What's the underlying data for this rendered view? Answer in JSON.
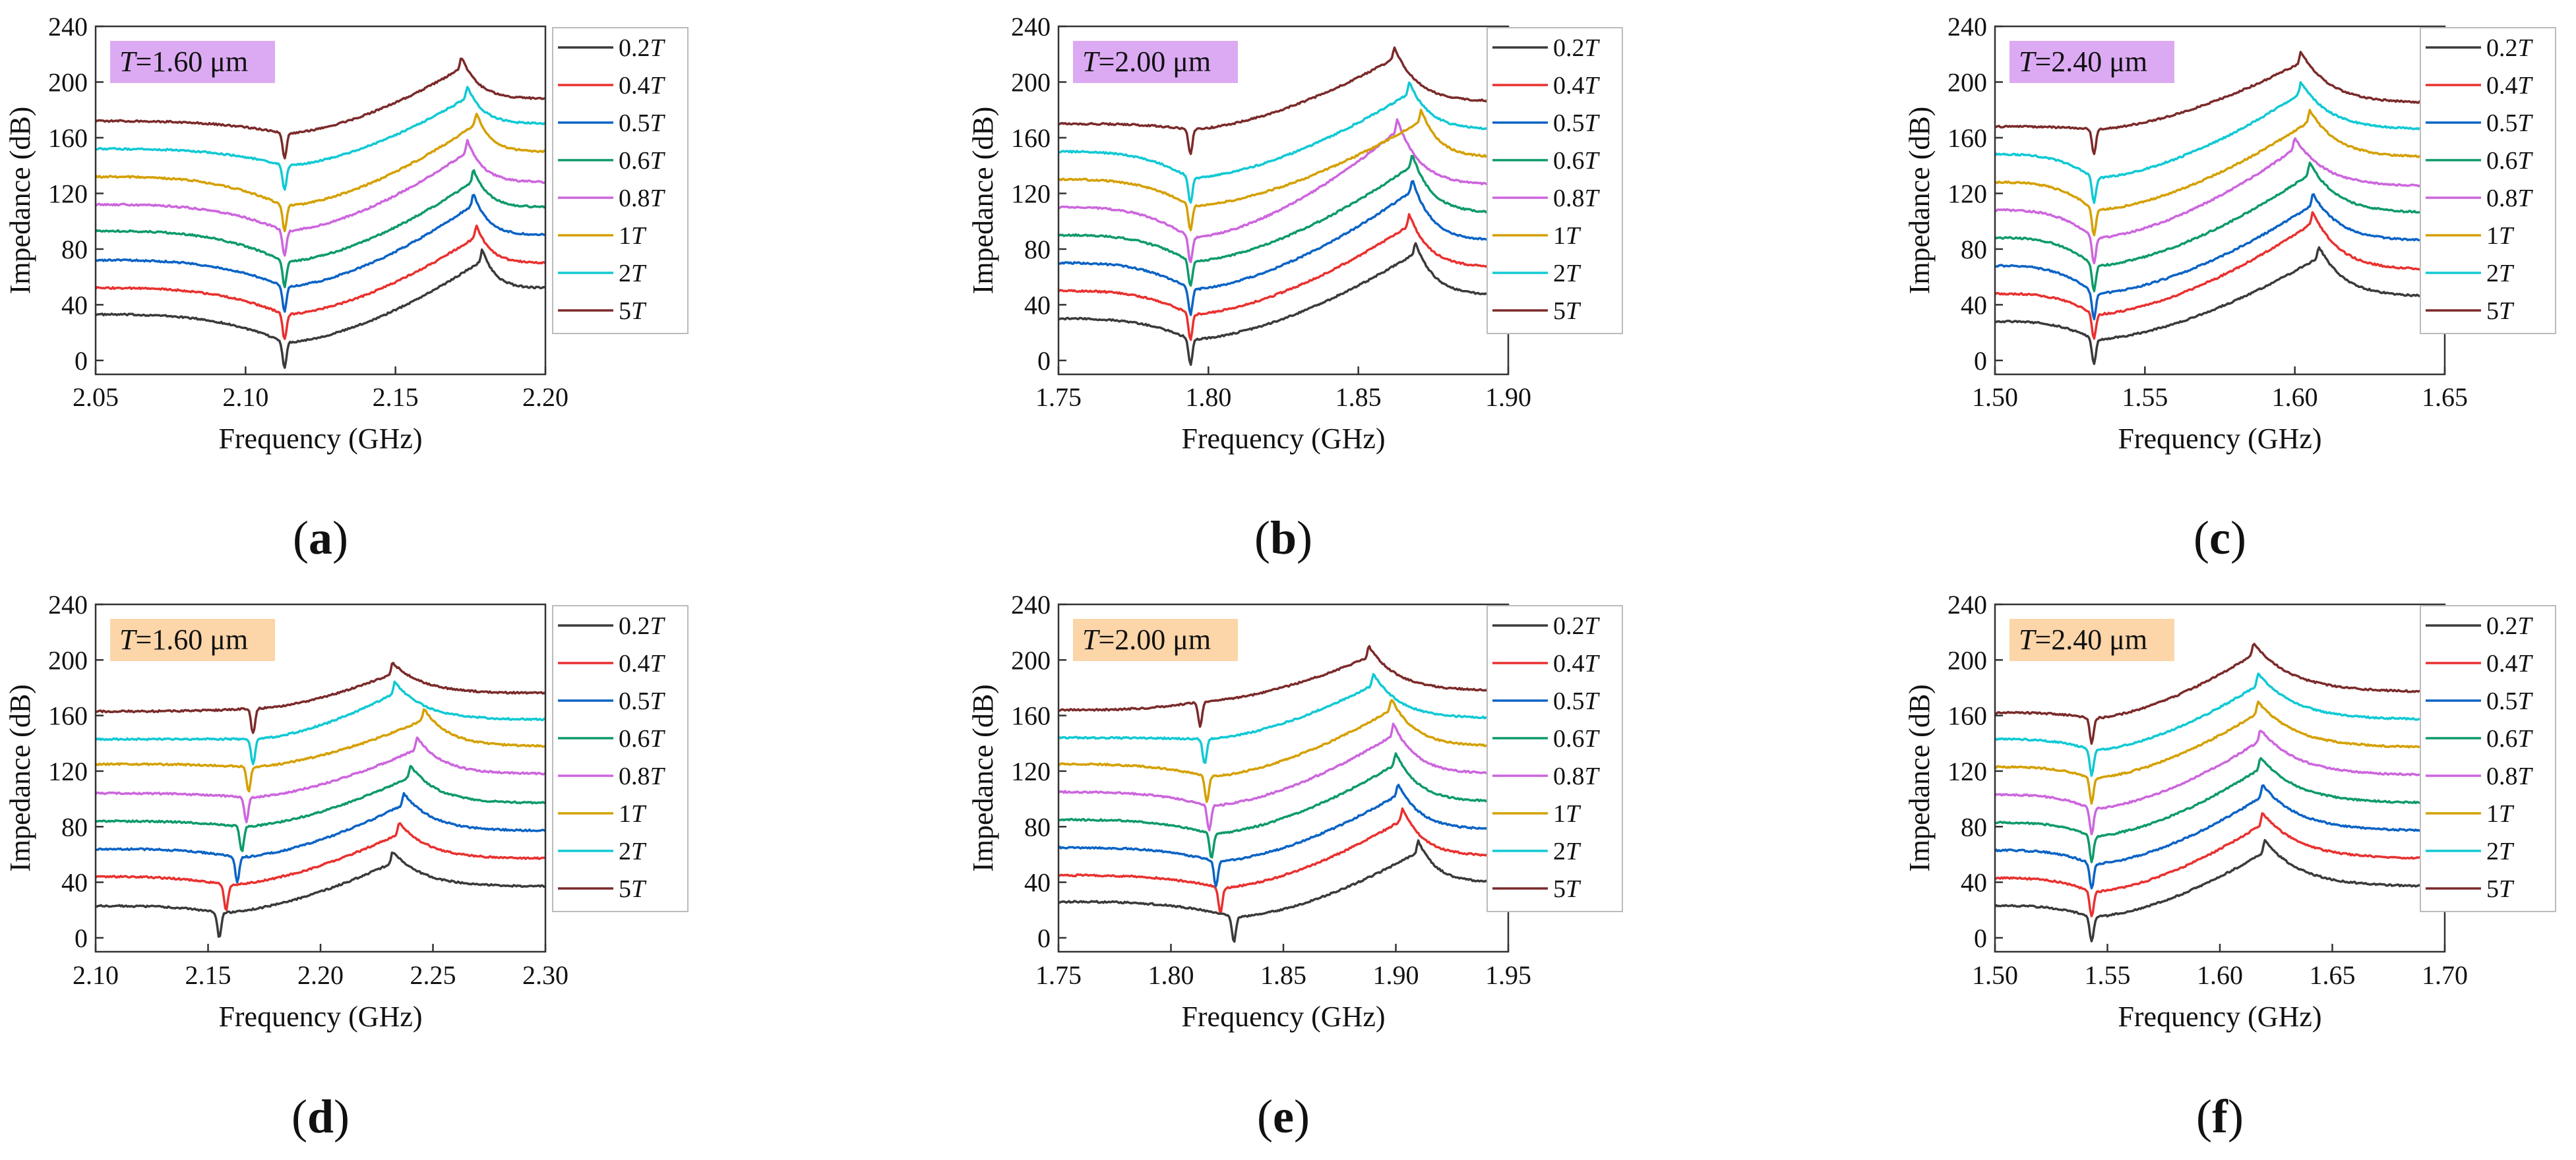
{
  "figure": {
    "legend_labels": [
      "0.2T",
      "0.4T",
      "0.5T",
      "0.6T",
      "0.8T",
      "1T",
      "2T",
      "5T"
    ],
    "legend_colors": [
      "#3a3a3a",
      "#e8312f",
      "#0b63c5",
      "#0e9a6a",
      "#cc66dd",
      "#d4a000",
      "#11c9d4",
      "#7b2a2a"
    ]
  },
  "chart_data": [
    {
      "panel": "a",
      "type": "line",
      "title_prefix": "T",
      "title_value": "=1.60 μm",
      "title_bg": "#dcaaf3",
      "xlabel": "Frequency (GHz)",
      "ylabel": "Impedance (dB)",
      "xlim": [
        2.05,
        2.2
      ],
      "ylim": [
        -10,
        240
      ],
      "xticks": [
        "2.05",
        "2.10",
        "2.15",
        "2.20"
      ],
      "yticks": [
        "0",
        "40",
        "80",
        "120",
        "160",
        "200",
        "240"
      ],
      "legend": [
        "0.2T",
        "0.4T",
        "0.5T",
        "0.6T",
        "0.8T",
        "1T",
        "2T",
        "5T"
      ],
      "resonance_ghz": 2.113,
      "antiresonance_ghz": [
        2.179,
        2.177,
        2.176,
        2.176,
        2.174,
        2.177,
        2.174,
        2.172
      ],
      "series": [
        {
          "name": "0.2T",
          "color": "#3a3a3a",
          "start": 33,
          "min": -5,
          "peak": 80,
          "end": 52
        },
        {
          "name": "0.4T",
          "color": "#e8312f",
          "start": 52,
          "min": 15,
          "peak": 97,
          "end": 70
        },
        {
          "name": "0.5T",
          "color": "#0b63c5",
          "start": 72,
          "min": 35,
          "peak": 120,
          "end": 90
        },
        {
          "name": "0.6T",
          "color": "#0e9a6a",
          "start": 93,
          "min": 53,
          "peak": 137,
          "end": 110
        },
        {
          "name": "0.8T",
          "color": "#cc66dd",
          "start": 112,
          "min": 75,
          "peak": 158,
          "end": 128
        },
        {
          "name": "1T",
          "color": "#d4a000",
          "start": 132,
          "min": 93,
          "peak": 178,
          "end": 150
        },
        {
          "name": "2T",
          "color": "#11c9d4",
          "start": 152,
          "min": 122,
          "peak": 197,
          "end": 170
        },
        {
          "name": "5T",
          "color": "#7b2a2a",
          "start": 172,
          "min": 145,
          "peak": 218,
          "end": 188
        }
      ]
    },
    {
      "panel": "b",
      "type": "line",
      "title_prefix": "T",
      "title_value": "=2.00 μm",
      "title_bg": "#dcaaf3",
      "xlabel": "Frequency (GHz)",
      "ylabel": "Impedance (dB)",
      "xlim": [
        1.75,
        1.9
      ],
      "ylim": [
        -10,
        240
      ],
      "xticks": [
        "1.75",
        "1.80",
        "1.85",
        "1.90"
      ],
      "yticks": [
        "0",
        "40",
        "80",
        "120",
        "160",
        "200",
        "240"
      ],
      "legend": [
        "0.2T",
        "0.4T",
        "0.5T",
        "0.6T",
        "0.8T",
        "1T",
        "2T",
        "5T"
      ],
      "resonance_ghz": 1.794,
      "antiresonance_ghz": [
        1.869,
        1.867,
        1.868,
        1.868,
        1.863,
        1.871,
        1.867,
        1.862
      ],
      "series": [
        {
          "name": "0.2T",
          "color": "#3a3a3a",
          "start": 30,
          "min": -3,
          "peak": 85,
          "end": 47
        },
        {
          "name": "0.4T",
          "color": "#e8312f",
          "start": 50,
          "min": 15,
          "peak": 105,
          "end": 67
        },
        {
          "name": "0.5T",
          "color": "#0b63c5",
          "start": 70,
          "min": 33,
          "peak": 130,
          "end": 86
        },
        {
          "name": "0.6T",
          "color": "#0e9a6a",
          "start": 90,
          "min": 53,
          "peak": 148,
          "end": 106
        },
        {
          "name": "0.8T",
          "color": "#cc66dd",
          "start": 110,
          "min": 70,
          "peak": 173,
          "end": 126
        },
        {
          "name": "1T",
          "color": "#d4a000",
          "start": 130,
          "min": 93,
          "peak": 180,
          "end": 146
        },
        {
          "name": "2T",
          "color": "#11c9d4",
          "start": 150,
          "min": 113,
          "peak": 200,
          "end": 166
        },
        {
          "name": "5T",
          "color": "#7b2a2a",
          "start": 170,
          "min": 148,
          "peak": 225,
          "end": 186
        }
      ]
    },
    {
      "panel": "c",
      "type": "line",
      "title_prefix": "T",
      "title_value": "=2.40 μm",
      "title_bg": "#dcaaf3",
      "xlabel": "Frequency (GHz)",
      "ylabel": "Impedance (dB)",
      "xlim": [
        1.5,
        1.65
      ],
      "ylim": [
        -10,
        240
      ],
      "xticks": [
        "1.50",
        "1.55",
        "1.60",
        "1.65"
      ],
      "yticks": [
        "0",
        "40",
        "80",
        "120",
        "160",
        "200",
        "240"
      ],
      "legend": [
        "0.2T",
        "0.4T",
        "0.5T",
        "0.6T",
        "0.8T",
        "1T",
        "2T",
        "5T"
      ],
      "resonance_ghz": 1.533,
      "antiresonance_ghz": [
        1.608,
        1.606,
        1.606,
        1.605,
        1.6,
        1.605,
        1.602,
        1.602
      ],
      "series": [
        {
          "name": "0.2T",
          "color": "#3a3a3a",
          "start": 28,
          "min": -3,
          "peak": 82,
          "end": 46
        },
        {
          "name": "0.4T",
          "color": "#e8312f",
          "start": 48,
          "min": 15,
          "peak": 107,
          "end": 65
        },
        {
          "name": "0.5T",
          "color": "#0b63c5",
          "start": 68,
          "min": 30,
          "peak": 120,
          "end": 86
        },
        {
          "name": "0.6T",
          "color": "#0e9a6a",
          "start": 88,
          "min": 50,
          "peak": 142,
          "end": 106
        },
        {
          "name": "0.8T",
          "color": "#cc66dd",
          "start": 108,
          "min": 70,
          "peak": 160,
          "end": 125
        },
        {
          "name": "1T",
          "color": "#d4a000",
          "start": 128,
          "min": 90,
          "peak": 180,
          "end": 146
        },
        {
          "name": "2T",
          "color": "#11c9d4",
          "start": 148,
          "min": 113,
          "peak": 200,
          "end": 166
        },
        {
          "name": "5T",
          "color": "#7b2a2a",
          "start": 168,
          "min": 148,
          "peak": 222,
          "end": 185
        }
      ]
    },
    {
      "panel": "d",
      "type": "line",
      "title_prefix": "T",
      "title_value": "=1.60 μm",
      "title_bg": "#fcd5a8",
      "xlabel": "Frequency (GHz)",
      "ylabel": "Impedance (dB)",
      "xlim": [
        2.1,
        2.3
      ],
      "ylim": [
        -10,
        240
      ],
      "xticks": [
        "2.10",
        "2.15",
        "2.20",
        "2.25",
        "2.30"
      ],
      "yticks": [
        "0",
        "40",
        "80",
        "120",
        "160",
        "200",
        "240"
      ],
      "legend": [
        "0.2T",
        "0.4T",
        "0.5T",
        "0.6T",
        "0.8T",
        "1T",
        "2T",
        "5T"
      ],
      "resonance_ghz": [
        2.155,
        2.158,
        2.163,
        2.165,
        2.167,
        2.168,
        2.17,
        2.17
      ],
      "antiresonance_ghz": [
        2.232,
        2.235,
        2.237,
        2.24,
        2.243,
        2.246,
        2.233,
        2.232
      ],
      "series": [
        {
          "name": "0.2T",
          "color": "#3a3a3a",
          "start": 23,
          "min": 0,
          "peak": 62,
          "end": 37
        },
        {
          "name": "0.4T",
          "color": "#e8312f",
          "start": 44,
          "min": 20,
          "peak": 83,
          "end": 57
        },
        {
          "name": "0.5T",
          "color": "#0b63c5",
          "start": 64,
          "min": 40,
          "peak": 104,
          "end": 77
        },
        {
          "name": "0.6T",
          "color": "#0e9a6a",
          "start": 84,
          "min": 62,
          "peak": 124,
          "end": 97
        },
        {
          "name": "0.8T",
          "color": "#cc66dd",
          "start": 104,
          "min": 83,
          "peak": 144,
          "end": 118
        },
        {
          "name": "1T",
          "color": "#d4a000",
          "start": 125,
          "min": 105,
          "peak": 165,
          "end": 138
        },
        {
          "name": "2T",
          "color": "#11c9d4",
          "start": 143,
          "min": 125,
          "peak": 184,
          "end": 157
        },
        {
          "name": "5T",
          "color": "#7b2a2a",
          "start": 163,
          "min": 147,
          "peak": 198,
          "end": 176
        }
      ]
    },
    {
      "panel": "e",
      "type": "line",
      "title_prefix": "T",
      "title_value": "=2.00 μm",
      "title_bg": "#fcd5a8",
      "xlabel": "Frequency (GHz)",
      "ylabel": "Impedance (dB)",
      "xlim": [
        1.75,
        1.95
      ],
      "ylim": [
        -10,
        240
      ],
      "xticks": [
        "1.75",
        "1.80",
        "1.85",
        "1.90",
        "1.95"
      ],
      "yticks": [
        "0",
        "40",
        "80",
        "120",
        "160",
        "200",
        "240"
      ],
      "legend": [
        "0.2T",
        "0.4T",
        "0.5T",
        "0.6T",
        "0.8T",
        "1T",
        "2T",
        "5T"
      ],
      "resonance_ghz": [
        1.828,
        1.822,
        1.82,
        1.818,
        1.817,
        1.816,
        1.815,
        1.813
      ],
      "antiresonance_ghz": [
        1.91,
        1.903,
        1.901,
        1.9,
        1.899,
        1.898,
        1.89,
        1.888
      ],
      "series": [
        {
          "name": "0.2T",
          "color": "#3a3a3a",
          "start": 26,
          "min": -3,
          "peak": 70,
          "end": 40
        },
        {
          "name": "0.4T",
          "color": "#e8312f",
          "start": 45,
          "min": 18,
          "peak": 93,
          "end": 59
        },
        {
          "name": "0.5T",
          "color": "#0b63c5",
          "start": 65,
          "min": 37,
          "peak": 111,
          "end": 78
        },
        {
          "name": "0.6T",
          "color": "#0e9a6a",
          "start": 85,
          "min": 57,
          "peak": 133,
          "end": 98
        },
        {
          "name": "0.8T",
          "color": "#cc66dd",
          "start": 105,
          "min": 77,
          "peak": 154,
          "end": 118
        },
        {
          "name": "1T",
          "color": "#d4a000",
          "start": 125,
          "min": 98,
          "peak": 172,
          "end": 138
        },
        {
          "name": "2T",
          "color": "#11c9d4",
          "start": 144,
          "min": 125,
          "peak": 190,
          "end": 158
        },
        {
          "name": "5T",
          "color": "#7b2a2a",
          "start": 164,
          "min": 152,
          "peak": 210,
          "end": 178
        }
      ]
    },
    {
      "panel": "f",
      "type": "line",
      "title_prefix": "T",
      "title_value": "=2.40 μm",
      "title_bg": "#fcd5a8",
      "xlabel": "Frequency (GHz)",
      "ylabel": "Impedance (dB)",
      "xlim": [
        1.5,
        1.7
      ],
      "ylim": [
        -10,
        240
      ],
      "xticks": [
        "1.50",
        "1.55",
        "1.60",
        "1.65",
        "1.70"
      ],
      "yticks": [
        "0",
        "40",
        "80",
        "120",
        "160",
        "200",
        "240"
      ],
      "legend": [
        "0.2T",
        "0.4T",
        "0.5T",
        "0.6T",
        "0.8T",
        "1T",
        "2T",
        "5T"
      ],
      "resonance_ghz": 1.543,
      "antiresonance_ghz": [
        1.62,
        1.619,
        1.619,
        1.618,
        1.618,
        1.617,
        1.617,
        1.615
      ],
      "series": [
        {
          "name": "0.2T",
          "color": "#3a3a3a",
          "start": 23,
          "min": -3,
          "peak": 70,
          "end": 37
        },
        {
          "name": "0.4T",
          "color": "#e8312f",
          "start": 43,
          "min": 15,
          "peak": 90,
          "end": 57
        },
        {
          "name": "0.5T",
          "color": "#0b63c5",
          "start": 63,
          "min": 35,
          "peak": 110,
          "end": 77
        },
        {
          "name": "0.6T",
          "color": "#0e9a6a",
          "start": 83,
          "min": 55,
          "peak": 130,
          "end": 97
        },
        {
          "name": "0.8T",
          "color": "#cc66dd",
          "start": 103,
          "min": 75,
          "peak": 150,
          "end": 117
        },
        {
          "name": "1T",
          "color": "#d4a000",
          "start": 123,
          "min": 97,
          "peak": 170,
          "end": 137
        },
        {
          "name": "2T",
          "color": "#11c9d4",
          "start": 143,
          "min": 117,
          "peak": 190,
          "end": 157
        },
        {
          "name": "5T",
          "color": "#7b2a2a",
          "start": 162,
          "min": 140,
          "peak": 212,
          "end": 177
        }
      ]
    }
  ]
}
